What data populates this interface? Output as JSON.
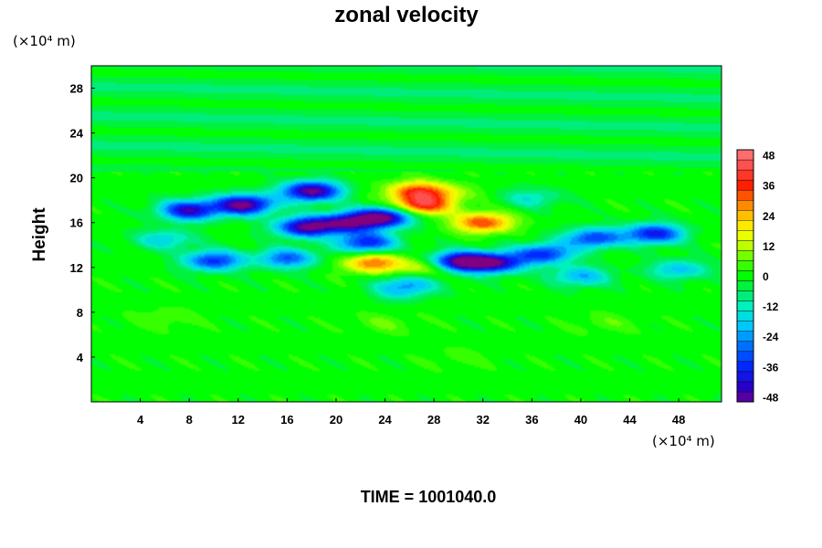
{
  "chart_data": {
    "type": "heatmap",
    "title": "zonal velocity",
    "xlabel": "",
    "ylabel": "Height",
    "x_unit": "(×10⁴ m)",
    "y_unit": "(×10⁴ m)",
    "xlim": [
      0,
      51.5
    ],
    "ylim": [
      0,
      30
    ],
    "x_ticks": [
      4,
      8,
      12,
      16,
      20,
      24,
      28,
      32,
      36,
      40,
      44,
      48
    ],
    "y_ticks": [
      4,
      8,
      12,
      16,
      20,
      24,
      28
    ],
    "colorbar": {
      "min": -50,
      "max": 50,
      "interval": 4,
      "tick_values": [
        -48,
        -36,
        -24,
        -12,
        0,
        12,
        24,
        36,
        48
      ]
    },
    "features": [
      {
        "x": 12.5,
        "y": 17.6,
        "value": -52
      },
      {
        "x": 18.0,
        "y": 18.8,
        "value": -52
      },
      {
        "x": 8.0,
        "y": 17.1,
        "value": -44
      },
      {
        "x": 24.0,
        "y": 16.5,
        "value": -50
      },
      {
        "x": 21.0,
        "y": 16.0,
        "value": -44
      },
      {
        "x": 17.5,
        "y": 15.6,
        "value": -48
      },
      {
        "x": 22.5,
        "y": 14.2,
        "value": -38
      },
      {
        "x": 30.0,
        "y": 12.5,
        "value": -52
      },
      {
        "x": 33.0,
        "y": 12.4,
        "value": -44
      },
      {
        "x": 37.0,
        "y": 13.2,
        "value": -36
      },
      {
        "x": 41.0,
        "y": 14.6,
        "value": -34
      },
      {
        "x": 46.0,
        "y": 15.0,
        "value": -40
      },
      {
        "x": 10.0,
        "y": 12.6,
        "value": -36
      },
      {
        "x": 16.0,
        "y": 12.8,
        "value": -30
      },
      {
        "x": 27.0,
        "y": 17.5,
        "value": 38
      },
      {
        "x": 26.5,
        "y": 18.8,
        "value": 30
      },
      {
        "x": 32.0,
        "y": 16.0,
        "value": 34
      },
      {
        "x": 23.0,
        "y": 12.4,
        "value": 30
      },
      {
        "x": 27.5,
        "y": 12.0,
        "value": 18
      },
      {
        "x": 29.0,
        "y": 18.6,
        "value": 12
      },
      {
        "x": 36.0,
        "y": 18.2,
        "value": -14
      },
      {
        "x": 6.0,
        "y": 14.5,
        "value": -18
      },
      {
        "x": 26.0,
        "y": 10.5,
        "value": -20
      },
      {
        "x": 40.0,
        "y": 11.2,
        "value": -22
      },
      {
        "x": 48.0,
        "y": 11.8,
        "value": -20
      },
      {
        "x": 25.0,
        "y": 9.8,
        "value": -10
      },
      {
        "x": 6.0,
        "y": 7.5,
        "value": 6
      },
      {
        "x": 24.0,
        "y": 7.0,
        "value": 6
      },
      {
        "x": 42.0,
        "y": 7.0,
        "value": 5
      },
      {
        "x": 30.0,
        "y": 4.0,
        "value": 4
      }
    ]
  },
  "footer": {
    "time_text": "TIME = 1001040.0"
  }
}
